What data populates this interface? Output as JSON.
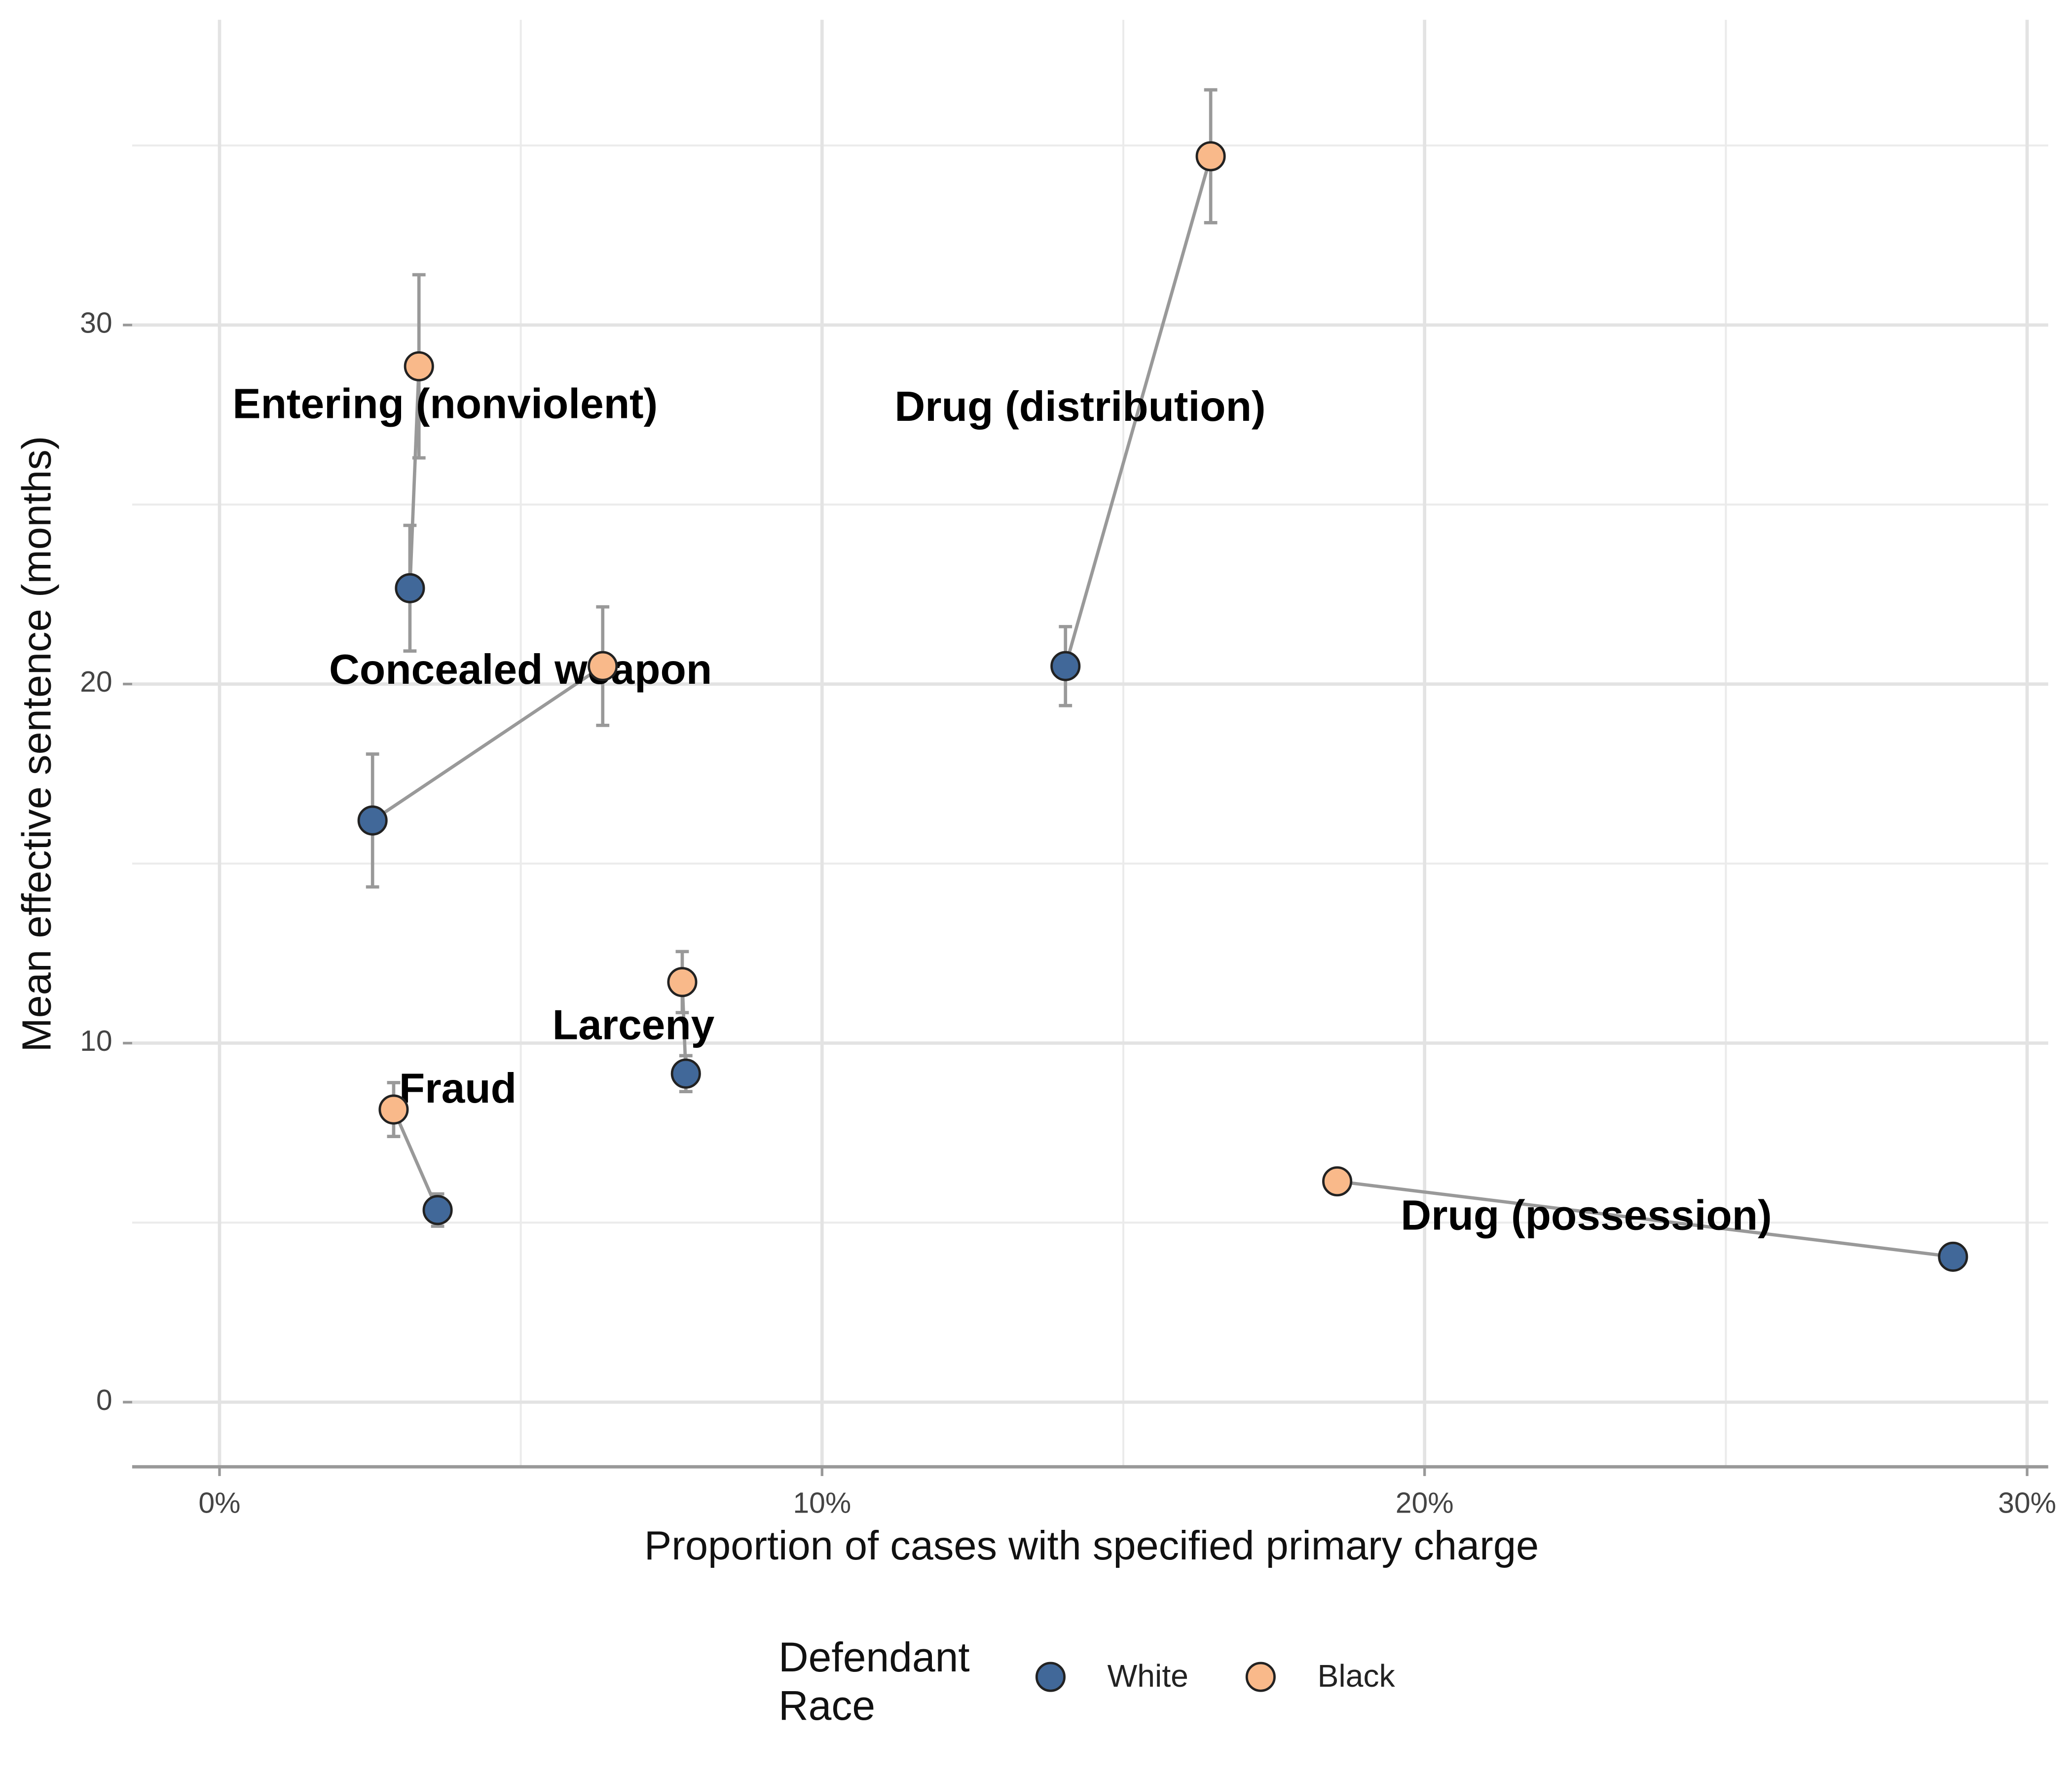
{
  "chart_data": {
    "type": "scatter",
    "x_label": "Proportion of cases with specified primary charge",
    "y_label": "Mean effective sentence (months)",
    "legend_title": "Defendant Race",
    "legend_position": "bottom",
    "grid": true,
    "charges": [
      "Entering (nonviolent)",
      "Concealed weapon",
      "Drug (distribution)",
      "Larceny",
      "Fraud",
      "Drug (possession)"
    ],
    "series": [
      {
        "name": "White",
        "color": "#416899",
        "x": [
          3.16,
          2.54,
          14.04,
          7.74,
          3.62,
          28.77
        ],
        "values": [
          22.67,
          16.2,
          20.5,
          9.15,
          5.35,
          4.05
        ],
        "errors": [
          1.75,
          1.85,
          1.1,
          0.5,
          0.45,
          0.15
        ]
      },
      {
        "name": "Black",
        "color": "#f9b98a",
        "x": [
          3.31,
          6.36,
          16.45,
          7.68,
          2.89,
          18.55
        ],
        "values": [
          28.85,
          20.5,
          34.7,
          11.7,
          8.15,
          6.15
        ],
        "errors": [
          2.55,
          1.65,
          1.85,
          0.85,
          0.75,
          0.1
        ]
      }
    ],
    "xlim": [
      -1.45,
      30.35
    ],
    "ylim": [
      -1.8,
      38.5
    ],
    "xticks": [
      {
        "value": 0,
        "label": "0%"
      },
      {
        "value": 10,
        "label": "10%"
      },
      {
        "value": 20,
        "label": "20%"
      },
      {
        "value": 30,
        "label": "30%"
      }
    ],
    "yticks": [
      0,
      10,
      20,
      30
    ],
    "x_minor_ticks": [
      5,
      15,
      25
    ],
    "y_minor_ticks": [
      5,
      15,
      25,
      35
    ]
  }
}
